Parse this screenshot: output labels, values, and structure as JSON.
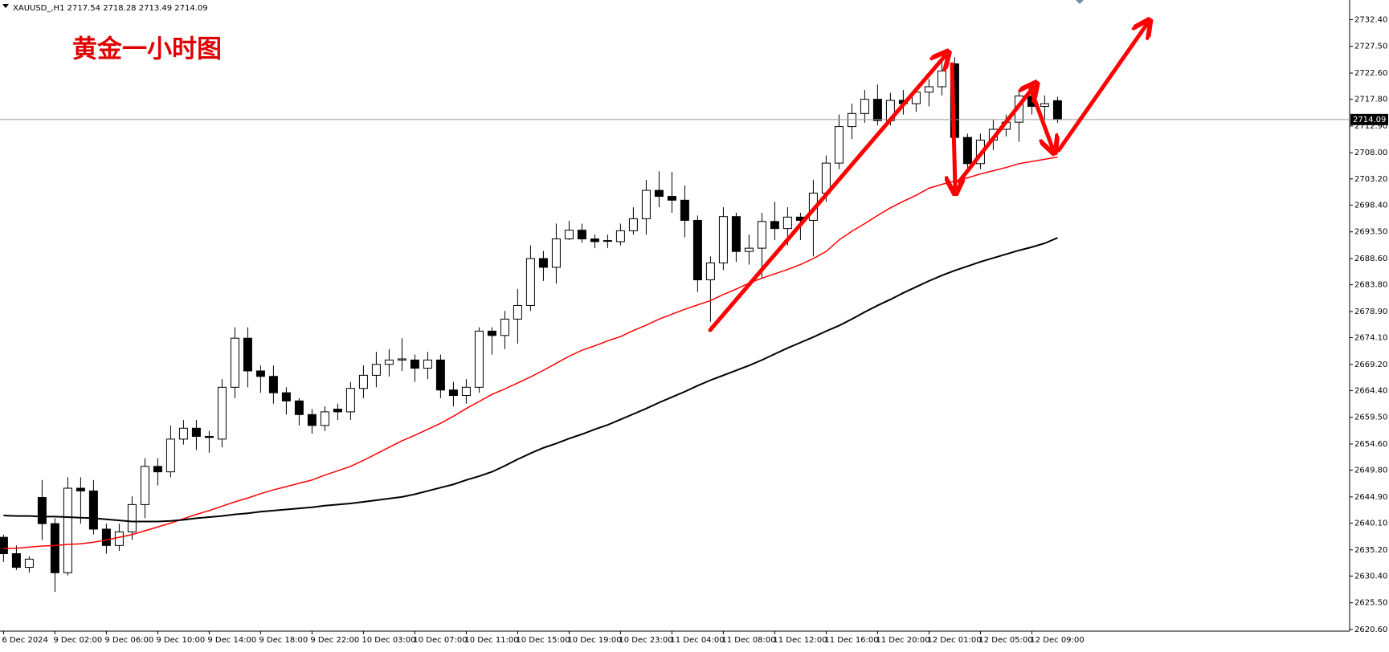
{
  "chart_data": {
    "type": "candlestick",
    "title": "黄金一小时图",
    "symbol": "XAUUSD_,H1",
    "categories": [
      "6 Dec 2024",
      null,
      null,
      null,
      "9 Dec 02:00",
      null,
      null,
      null,
      "9 Dec 06:00",
      null,
      null,
      null,
      "9 Dec 10:00",
      null,
      null,
      null,
      "9 Dec 14:00",
      null,
      null,
      null,
      "9 Dec 18:00",
      null,
      null,
      null,
      "9 Dec 22:00",
      null,
      null,
      null,
      "10 Dec 03:00",
      null,
      null,
      null,
      "10 Dec 07:00",
      null,
      null,
      null,
      "10 Dec 11:00",
      null,
      null,
      null,
      "10 Dec 15:00",
      null,
      null,
      null,
      "10 Dec 19:00",
      null,
      null,
      null,
      "10 Dec 23:00",
      null,
      null,
      null,
      "11 Dec 04:00",
      null,
      null,
      null,
      "11 Dec 08:00",
      null,
      null,
      null,
      "11 Dec 12:00",
      null,
      null,
      null,
      "11 Dec 16:00",
      null,
      null,
      null,
      "11 Dec 20:00",
      null,
      null,
      null,
      "12 Dec 01:00",
      null,
      null,
      null,
      "12 Dec 05:00",
      null,
      null,
      null,
      "12 Dec 09:00",
      null,
      null
    ],
    "open": [
      2637.5,
      2634.5,
      2632,
      2644.8,
      2640,
      2631,
      2646.5,
      2646,
      2639,
      2636,
      2638.5,
      2643.5,
      2650.5,
      2649.5,
      2655.5,
      2657.5,
      2656,
      2655.5,
      2665,
      2674,
      2668,
      2667,
      2664,
      2662.5,
      2660,
      2658,
      2661,
      2660.5,
      2664.8,
      2667.2,
      2669.2,
      2670,
      2670,
      2668.5,
      2670,
      2664.5,
      2663.5,
      2665,
      2675.3,
      2674.5,
      2677.5,
      2680,
      2688.6,
      2687,
      2692.2,
      2693.8,
      2692.2,
      2691.8,
      2691.7,
      2693.7,
      2695.9,
      2701.1,
      2700,
      2699.3,
      2695.6,
      2684.7,
      2687.8,
      2696.3,
      2689.9,
      2690.5,
      2695.4,
      2694.1,
      2696.2,
      2695.6,
      2700.6,
      2706.1,
      2712.8,
      2715.2,
      2717.8,
      2713.9,
      2717.6,
      2717,
      2719.1,
      2720.1,
      2724.3,
      2710.8,
      2706,
      2710.3,
      2712.3,
      2713.6,
      2718.4,
      2716.5,
      2717.54
    ],
    "high": [
      2638,
      2636,
      2634,
      2648,
      2641,
      2648.5,
      2648.5,
      2648,
      2640,
      2640,
      2645,
      2652,
      2652,
      2658,
      2659,
      2659,
      2657,
      2666.5,
      2676,
      2676,
      2669,
      2669,
      2665,
      2663,
      2661,
      2661.5,
      2662,
      2666,
      2669,
      2671.5,
      2672,
      2674,
      2671,
      2671.5,
      2671,
      2666,
      2666.5,
      2676,
      2676,
      2679,
      2683,
      2691,
      2690,
      2695,
      2695.5,
      2695,
      2693,
      2693,
      2695,
      2698,
      2703,
      2704.6,
      2704.5,
      2702,
      2696.5,
      2689,
      2698,
      2697,
      2693,
      2697,
      2699,
      2698,
      2697,
      2703,
      2707.5,
      2715,
      2717,
      2719.5,
      2720.5,
      2719,
      2719.5,
      2720,
      2721.5,
      2725,
      2725.5,
      2711.5,
      2711.5,
      2714,
      2715,
      2719.5,
      2720,
      2718.5,
      2718.28
    ],
    "low": [
      2633,
      2631.5,
      2631,
      2637,
      2627.5,
      2630.5,
      2640,
      2638,
      2634.5,
      2635,
      2637,
      2641,
      2647,
      2648.5,
      2654.5,
      2653.5,
      2653,
      2654,
      2663,
      2665,
      2664,
      2662,
      2660,
      2658,
      2656.5,
      2657,
      2659,
      2659,
      2663,
      2665,
      2667,
      2668,
      2666,
      2666.5,
      2663,
      2661.5,
      2662,
      2664,
      2671,
      2672,
      2673,
      2679,
      2684.5,
      2684,
      2692,
      2691.5,
      2690.5,
      2690.5,
      2691,
      2693,
      2693,
      2698,
      2697,
      2692.5,
      2682.5,
      2677,
      2686.5,
      2688,
      2687.5,
      2685,
      2692,
      2691,
      2692,
      2689,
      2699,
      2705,
      2710.5,
      2713.5,
      2713,
      2713,
      2715,
      2715.5,
      2716.5,
      2718.5,
      2710,
      2704.5,
      2705,
      2708.5,
      2711,
      2710,
      2715,
      2714,
      2713.49
    ],
    "close": [
      2634.5,
      2632,
      2633.5,
      2640,
      2631,
      2646.5,
      2646,
      2639,
      2636,
      2638.5,
      2643.5,
      2650.5,
      2649.5,
      2655.5,
      2657.5,
      2656,
      2655.8,
      2665,
      2674,
      2668,
      2667,
      2664,
      2662.5,
      2660,
      2658,
      2660.5,
      2660.5,
      2664.8,
      2667.2,
      2669.2,
      2670,
      2670.2,
      2668.5,
      2670,
      2664.5,
      2663.5,
      2665,
      2675.3,
      2674.5,
      2677.5,
      2680,
      2688.6,
      2687,
      2692.2,
      2693.8,
      2692.2,
      2691.7,
      2691.9,
      2693.7,
      2695.9,
      2701.1,
      2700,
      2699.3,
      2695.6,
      2684.7,
      2687.8,
      2696.3,
      2689.9,
      2690.5,
      2695.4,
      2694.1,
      2696.2,
      2695.6,
      2700.6,
      2706.1,
      2712.8,
      2715.2,
      2717.8,
      2713.9,
      2717.6,
      2717,
      2719.1,
      2720.1,
      2723,
      2710.8,
      2706,
      2710.3,
      2712.3,
      2713.6,
      2718.4,
      2716.5,
      2717,
      2714.09
    ],
    "up_color": "#ffffff",
    "down_color": "#000000",
    "lines": [
      {
        "color": "#ff0000",
        "values": [
          2635.4,
          2635.5,
          2635.7,
          2635.9,
          2636.0,
          2636.2,
          2636.3,
          2636.6,
          2637.0,
          2637.5,
          2638.0,
          2638.7,
          2639.4,
          2640.1,
          2640.9,
          2641.7,
          2642.4,
          2643.2,
          2644.0,
          2644.7,
          2645.5,
          2646.2,
          2646.8,
          2647.4,
          2648.0,
          2648.9,
          2649.7,
          2650.5,
          2651.6,
          2652.8,
          2654.0,
          2655.2,
          2656.2,
          2657.3,
          2658.4,
          2659.7,
          2661.1,
          2662.4,
          2663.7,
          2664.7,
          2665.8,
          2666.9,
          2668.1,
          2669.4,
          2670.7,
          2671.8,
          2672.6,
          2673.5,
          2674.3,
          2675.4,
          2676.4,
          2677.5,
          2678.4,
          2679.3,
          2680.1,
          2680.9,
          2682.0,
          2683.0,
          2684.1,
          2685.0,
          2685.8,
          2686.6,
          2687.5,
          2688.6,
          2689.9,
          2692.0,
          2693.6,
          2695.0,
          2696.5,
          2697.9,
          2699.1,
          2700.2,
          2701.5,
          2702.2,
          2702.8,
          2703.4,
          2704.1,
          2704.7,
          2705.3,
          2706.0,
          2706.4,
          2706.8,
          2707.2
        ]
      },
      {
        "color": "#000000",
        "values": [
          2641.5,
          2641.4,
          2641.4,
          2641.3,
          2641.3,
          2641.2,
          2641.1,
          2641.0,
          2640.8,
          2640.6,
          2640.4,
          2640.4,
          2640.4,
          2640.5,
          2640.7,
          2641.0,
          2641.2,
          2641.4,
          2641.7,
          2641.9,
          2642.2,
          2642.4,
          2642.6,
          2642.8,
          2643.0,
          2643.3,
          2643.5,
          2643.7,
          2644.0,
          2644.3,
          2644.6,
          2644.9,
          2645.4,
          2646.0,
          2646.6,
          2647.2,
          2648.0,
          2648.7,
          2649.5,
          2650.6,
          2651.8,
          2652.9,
          2653.9,
          2654.7,
          2655.6,
          2656.4,
          2657.3,
          2658.1,
          2659.1,
          2660.1,
          2661.1,
          2662.2,
          2663.2,
          2664.2,
          2665.3,
          2666.3,
          2667.2,
          2668.1,
          2669.0,
          2670.0,
          2671.1,
          2672.2,
          2673.2,
          2674.2,
          2675.3,
          2676.3,
          2677.5,
          2678.8,
          2680.0,
          2681.1,
          2682.3,
          2683.4,
          2684.5,
          2685.5,
          2686.4,
          2687.2,
          2688.0,
          2688.7,
          2689.4,
          2690.1,
          2690.7,
          2691.4,
          2692.4
        ]
      }
    ],
    "ylim": [
      2620.3,
      2736.0
    ],
    "yticks": [
      {
        "value": 2732.4,
        "label": "2732.40"
      },
      {
        "value": 2727.5,
        "label": "2727.50"
      },
      {
        "value": 2722.6,
        "label": "2722.60"
      },
      {
        "value": 2717.8,
        "label": "2717.80"
      },
      {
        "value": 2712.9,
        "label": "2712.90"
      },
      {
        "value": 2708,
        "label": "2708.00"
      },
      {
        "value": 2703.2,
        "label": "2703.20"
      },
      {
        "value": 2698.4,
        "label": "2698.40"
      },
      {
        "value": 2693.5,
        "label": "2693.50"
      },
      {
        "value": 2688.6,
        "label": "2688.60"
      },
      {
        "value": 2683.8,
        "label": "2683.80"
      },
      {
        "value": 2678.9,
        "label": "2678.90"
      },
      {
        "value": 2674.1,
        "label": "2674.10"
      },
      {
        "value": 2669.2,
        "label": "2669.20"
      },
      {
        "value": 2664.4,
        "label": "2664.40"
      },
      {
        "value": 2659.5,
        "label": "2659.50"
      },
      {
        "value": 2654.6,
        "label": "2654.60"
      },
      {
        "value": 2649.8,
        "label": "2649.80"
      },
      {
        "value": 2644.9,
        "label": "2644.90"
      },
      {
        "value": 2640.1,
        "label": "2640.10"
      },
      {
        "value": 2635.2,
        "label": "2635.20"
      },
      {
        "value": 2630.4,
        "label": "2630.40"
      },
      {
        "value": 2625.5,
        "label": "2625.50"
      },
      {
        "value": 2620.6,
        "label": "2620.60"
      }
    ],
    "grid": false
  }
}
